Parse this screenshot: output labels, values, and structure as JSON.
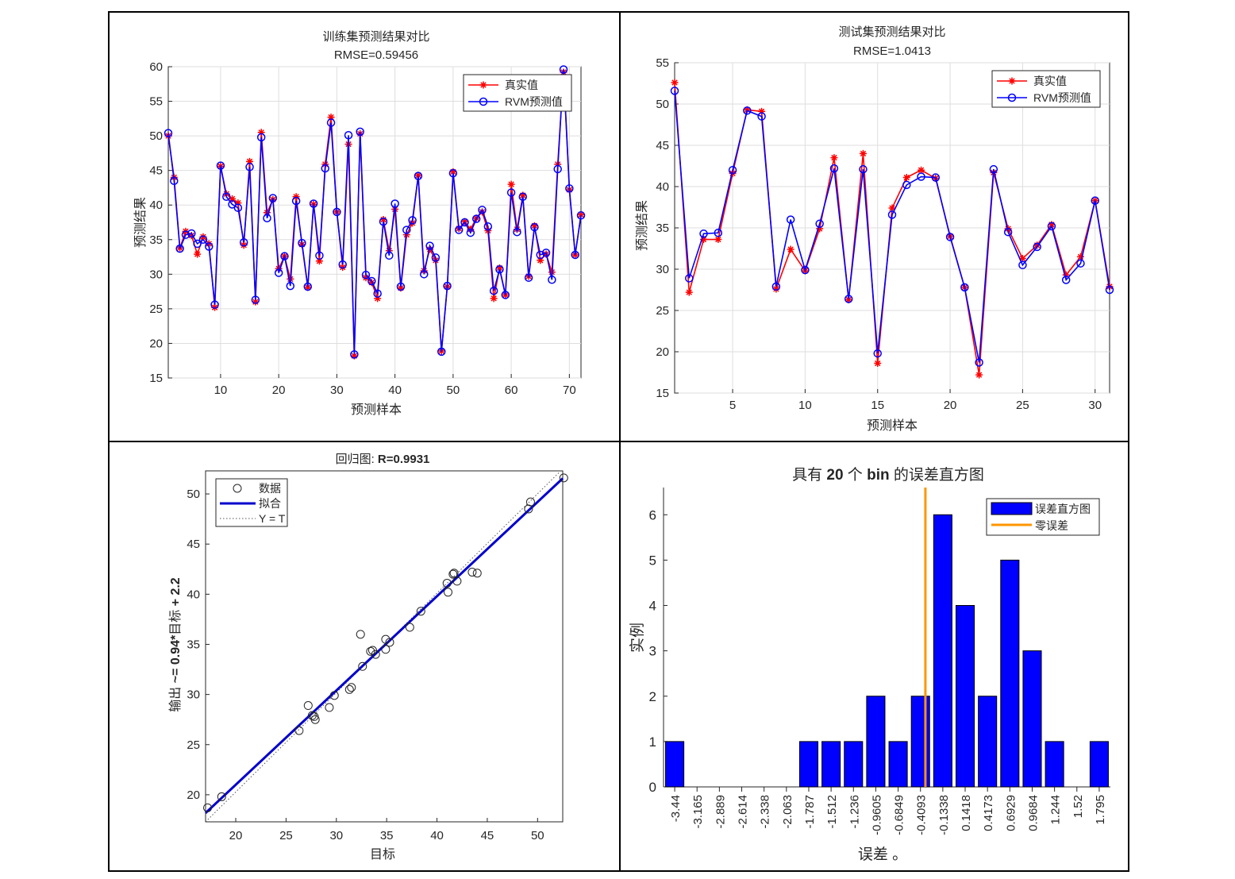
{
  "chart_data": [
    {
      "id": "train",
      "type": "line",
      "title": "训练集预测结果对比",
      "subtitle": "RMSE=0.59456",
      "xlabel": "预测样本",
      "ylabel": "预测结果",
      "xlim": [
        1,
        72
      ],
      "ylim": [
        15,
        60
      ],
      "xticks": [
        10,
        20,
        30,
        40,
        50,
        60,
        70
      ],
      "yticks": [
        15,
        20,
        25,
        30,
        35,
        40,
        45,
        50,
        55,
        60
      ],
      "grid": true,
      "legend_position": "top-right",
      "series": [
        {
          "name": "真实值",
          "color": "#ff0000",
          "marker": "star",
          "values": [
            50.0,
            44.0,
            33.8,
            36.2,
            35.6,
            32.9,
            35.4,
            34.4,
            25.2,
            45.6,
            41.6,
            40.9,
            40.3,
            34.2,
            46.3,
            26.0,
            50.5,
            38.9,
            40.8,
            30.8,
            32.6,
            29.3,
            41.2,
            34.3,
            28.1,
            40.1,
            31.9,
            45.9,
            52.7,
            39.0,
            31.0,
            48.8,
            18.2,
            50.3,
            29.5,
            28.8,
            26.5,
            37.9,
            33.4,
            39.4,
            28.0,
            35.7,
            37.4,
            44.3,
            30.5,
            33.6,
            32.0,
            18.9,
            28.2,
            44.8,
            36.6,
            37.6,
            36.5,
            38.1,
            39.0,
            36.3,
            26.5,
            30.9,
            27.0,
            43.0,
            36.5,
            41.4,
            29.7,
            37.0,
            32.0,
            32.9,
            30.3,
            45.9,
            59.2,
            42.2,
            32.8,
            38.6
          ]
        },
        {
          "name": "RVM预测值",
          "color": "#0000ff",
          "marker": "circle",
          "values": [
            50.4,
            43.5,
            33.7,
            35.7,
            35.9,
            34.4,
            35.0,
            34.0,
            25.6,
            45.7,
            41.2,
            40.1,
            39.6,
            34.6,
            45.5,
            26.3,
            49.8,
            38.1,
            41.0,
            30.2,
            32.6,
            28.3,
            40.6,
            34.5,
            28.2,
            40.2,
            32.7,
            45.3,
            51.9,
            39.0,
            31.4,
            50.1,
            18.4,
            50.6,
            29.9,
            29.0,
            27.2,
            37.6,
            32.7,
            40.2,
            28.2,
            36.4,
            37.8,
            44.2,
            30.0,
            34.1,
            32.4,
            18.8,
            28.3,
            44.6,
            36.4,
            37.5,
            36.0,
            38.0,
            39.3,
            36.9,
            27.6,
            30.7,
            27.0,
            41.8,
            36.1,
            41.2,
            29.5,
            36.8,
            32.8,
            33.1,
            29.2,
            45.2,
            59.6,
            42.4,
            32.8,
            38.5
          ]
        }
      ]
    },
    {
      "id": "test",
      "type": "line",
      "title": "测试集预测结果对比",
      "subtitle": "RMSE=1.0413",
      "xlabel": "预测样本",
      "ylabel": "预测结果",
      "xlim": [
        1,
        31
      ],
      "ylim": [
        15,
        55
      ],
      "xticks": [
        5,
        10,
        15,
        20,
        25,
        30
      ],
      "yticks": [
        15,
        20,
        25,
        30,
        35,
        40,
        45,
        50,
        55
      ],
      "grid": true,
      "legend_position": "top-right",
      "series": [
        {
          "name": "真实值",
          "color": "#ff0000",
          "marker": "star",
          "values": [
            52.6,
            27.2,
            33.6,
            33.6,
            41.6,
            49.3,
            49.1,
            27.6,
            32.4,
            29.8,
            34.9,
            43.5,
            26.3,
            44.0,
            18.6,
            37.4,
            41.1,
            42.0,
            41.0,
            34.0,
            27.8,
            17.2,
            41.7,
            34.9,
            31.3,
            32.9,
            35.4,
            29.3,
            31.5,
            38.3,
            27.9
          ]
        },
        {
          "name": "RVM预测值",
          "color": "#0000ff",
          "marker": "circle",
          "values": [
            51.6,
            28.9,
            34.3,
            34.4,
            42.0,
            49.2,
            48.5,
            27.9,
            36.0,
            29.9,
            35.5,
            42.2,
            26.4,
            42.1,
            19.8,
            36.6,
            40.2,
            41.2,
            41.1,
            33.9,
            27.8,
            18.7,
            42.1,
            34.5,
            30.5,
            32.7,
            35.2,
            28.7,
            30.7,
            38.3,
            27.5
          ]
        }
      ]
    },
    {
      "id": "regression",
      "type": "scatter",
      "title_prefix": "回归图: ",
      "title_bold": "R=0.9931",
      "xlabel": "目标",
      "ylabel_prefix": "输出 ",
      "ylabel_bold": "~= 0.94*",
      "ylabel_mid": "目标",
      "ylabel_suffix": " + 2.2",
      "xlim": [
        17,
        52.5
      ],
      "ylim": [
        17.3,
        52.3
      ],
      "xticks": [
        20,
        25,
        30,
        35,
        40,
        45,
        50
      ],
      "yticks": [
        20,
        25,
        30,
        35,
        40,
        45,
        50
      ],
      "grid": false,
      "legend_position": "top-left",
      "fit": {
        "slope": 0.94,
        "intercept": 2.2
      },
      "legend": [
        "数据",
        "拟合",
        "Y = T"
      ],
      "points": [
        [
          17.2,
          18.7
        ],
        [
          18.6,
          19.8
        ],
        [
          26.3,
          26.4
        ],
        [
          27.2,
          28.9
        ],
        [
          27.6,
          27.9
        ],
        [
          27.8,
          27.8
        ],
        [
          27.9,
          27.5
        ],
        [
          29.3,
          28.7
        ],
        [
          29.8,
          29.9
        ],
        [
          31.3,
          30.5
        ],
        [
          31.5,
          30.7
        ],
        [
          32.4,
          36.0
        ],
        [
          32.6,
          32.8
        ],
        [
          33.4,
          34.3
        ],
        [
          33.6,
          34.4
        ],
        [
          33.9,
          34.0
        ],
        [
          34.9,
          35.5
        ],
        [
          34.9,
          34.5
        ],
        [
          35.3,
          35.2
        ],
        [
          37.3,
          36.7
        ],
        [
          38.4,
          38.3
        ],
        [
          41.0,
          41.1
        ],
        [
          41.1,
          40.2
        ],
        [
          41.6,
          42.0
        ],
        [
          41.7,
          42.1
        ],
        [
          42.0,
          41.3
        ],
        [
          43.5,
          42.2
        ],
        [
          44.0,
          42.1
        ],
        [
          49.1,
          48.5
        ],
        [
          49.3,
          49.2
        ],
        [
          52.6,
          51.6
        ]
      ]
    },
    {
      "id": "histogram",
      "type": "bar",
      "title_prefix": "具有 ",
      "title_bold1": "20",
      "title_mid": " 个 ",
      "title_bold2": "bin",
      "title_suffix": " 的误差直方图",
      "xlabel": "误差 。",
      "ylabel": "实例",
      "ylim": [
        0,
        6.6
      ],
      "yticks": [
        0,
        1,
        2,
        3,
        4,
        5,
        6
      ],
      "grid": false,
      "legend_position": "top-right",
      "legend": [
        "误差直方图",
        "零误差"
      ],
      "bar_color": "#0000ff",
      "zero_line_color": "#ff9500",
      "zero_error_position": 11.22,
      "categories": [
        "-3.44",
        "-3.165",
        "-2.889",
        "-2.614",
        "-2.338",
        "-2.063",
        "-1.787",
        "-1.512",
        "-1.236",
        "-0.9605",
        "-0.6849",
        "-0.4093",
        "-0.1338",
        "0.1418",
        "0.4173",
        "0.6929",
        "0.9684",
        "1.244",
        "1.52",
        "1.795"
      ],
      "values": [
        1,
        0,
        0,
        0,
        0,
        0,
        1,
        1,
        1,
        2,
        1,
        2,
        6,
        4,
        2,
        5,
        3,
        1,
        0,
        1
      ]
    }
  ]
}
